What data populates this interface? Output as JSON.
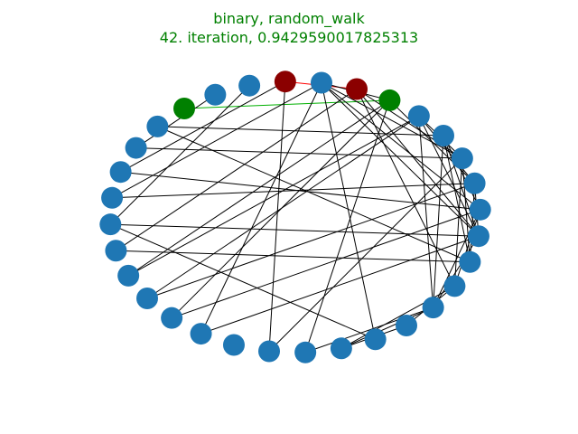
{
  "title": {
    "line1": "binary, random_walk",
    "line2": "42. iteration, 0.9429590017825313",
    "color": "#008000"
  },
  "graph": {
    "node_count": 32,
    "default_node_color": "#1f77b4",
    "highlight_colors": {
      "green": "#008000",
      "red": "#8b0000"
    },
    "edge_color": "#000000",
    "green_nodes": [
      0,
      6
    ],
    "red_nodes": [
      3,
      5
    ],
    "highlight_edges": [
      {
        "from": 0,
        "to": 6,
        "color": "#00b000"
      },
      {
        "from": 3,
        "to": 5,
        "color": "#ff0000"
      }
    ],
    "edges": [
      [
        0,
        6
      ],
      [
        3,
        5
      ],
      [
        3,
        20
      ],
      [
        4,
        6
      ],
      [
        4,
        9
      ],
      [
        4,
        11
      ],
      [
        4,
        12
      ],
      [
        4,
        17
      ],
      [
        4,
        22
      ],
      [
        5,
        9
      ],
      [
        5,
        12
      ],
      [
        5,
        14
      ],
      [
        6,
        10
      ],
      [
        6,
        19
      ],
      [
        6,
        23
      ],
      [
        6,
        25
      ],
      [
        7,
        9
      ],
      [
        7,
        10
      ],
      [
        7,
        12
      ],
      [
        7,
        15
      ],
      [
        7,
        25
      ],
      [
        8,
        11
      ],
      [
        8,
        12
      ],
      [
        8,
        13
      ],
      [
        8,
        15
      ],
      [
        9,
        13
      ],
      [
        9,
        14
      ],
      [
        10,
        12
      ],
      [
        10,
        13
      ],
      [
        11,
        14
      ],
      [
        11,
        15
      ],
      [
        12,
        15
      ],
      [
        14,
        16
      ],
      [
        14,
        18
      ],
      [
        15,
        18
      ],
      [
        15,
        19
      ],
      [
        16,
        18
      ],
      [
        17,
        27
      ],
      [
        13,
        26
      ],
      [
        12,
        27
      ],
      [
        10,
        28
      ],
      [
        11,
        29
      ],
      [
        9,
        30
      ],
      [
        8,
        31
      ],
      [
        7,
        24
      ],
      [
        5,
        26
      ],
      [
        4,
        28
      ],
      [
        3,
        29
      ],
      [
        2,
        27
      ],
      [
        1,
        30
      ],
      [
        13,
        31
      ],
      [
        12,
        22
      ],
      [
        11,
        23
      ],
      [
        10,
        24
      ],
      [
        9,
        20
      ]
    ]
  }
}
